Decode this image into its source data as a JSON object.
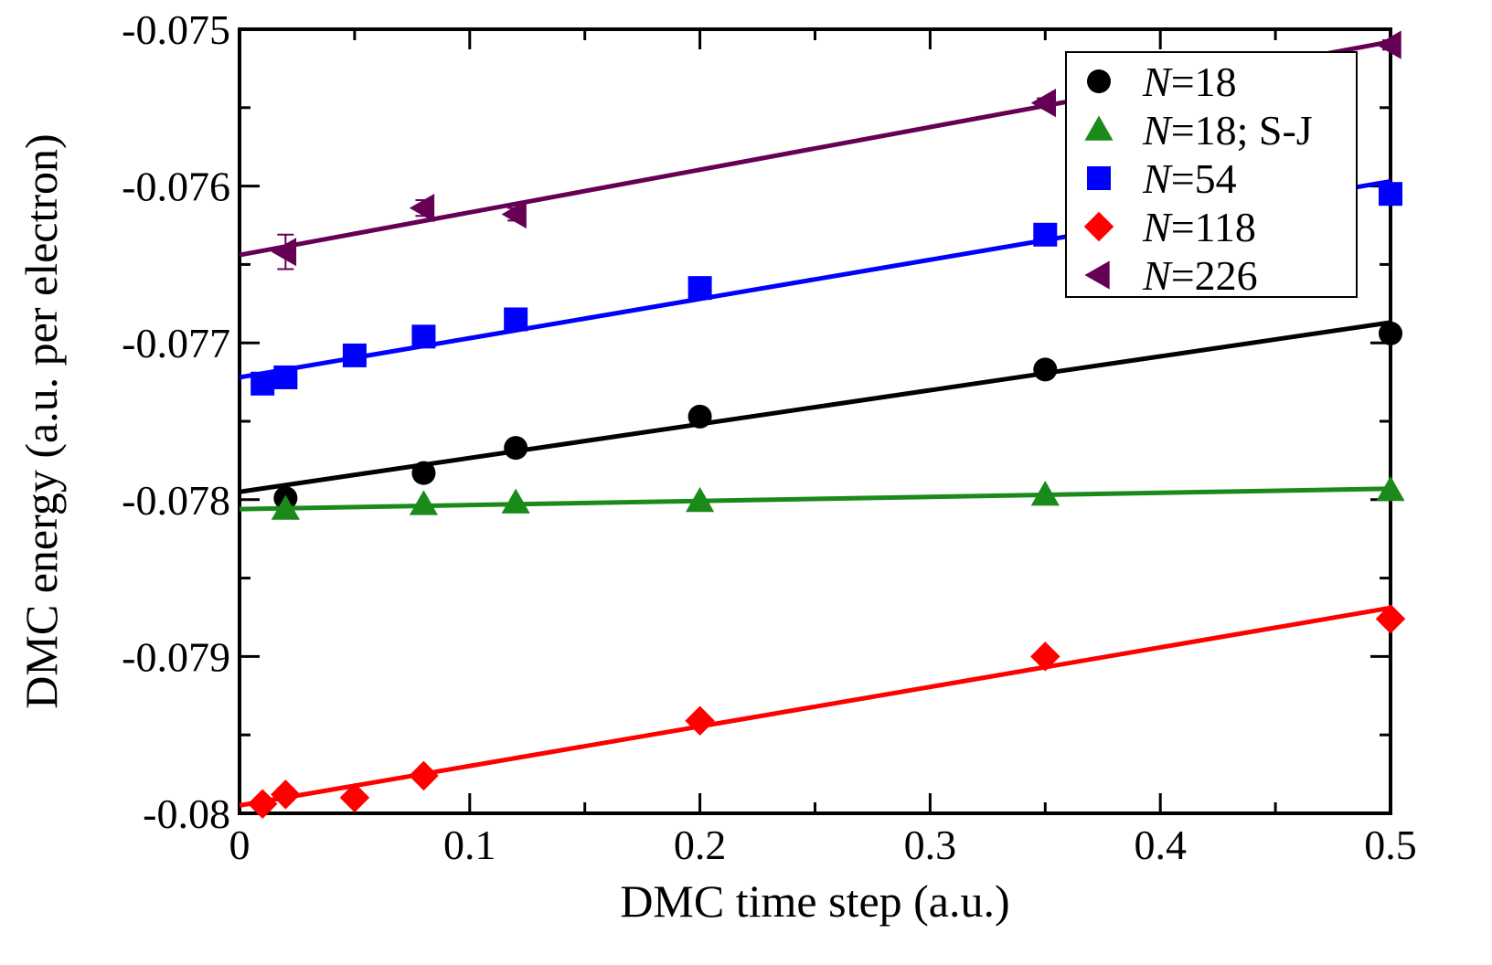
{
  "chart_data": {
    "type": "scatter",
    "title": "",
    "xlabel": "DMC time step (a.u.)",
    "ylabel": "DMC energy (a.u. per electron)",
    "xlim": [
      0,
      0.5
    ],
    "ylim": [
      -0.08,
      -0.075
    ],
    "x_ticks": [
      0,
      0.1,
      0.2,
      0.3,
      0.4,
      0.5
    ],
    "x_tick_labels": [
      "0",
      "0.1",
      "0.2",
      "0.3",
      "0.4",
      "0.5"
    ],
    "y_ticks": [
      -0.08,
      -0.079,
      -0.078,
      -0.077,
      -0.076,
      -0.075
    ],
    "y_tick_labels": [
      "-0.08",
      "-0.079",
      "-0.078",
      "-0.077",
      "-0.076",
      "-0.075"
    ],
    "grid": false,
    "legend_position": "top-right",
    "series": [
      {
        "name": "N=18",
        "legend_italic": "N",
        "legend_rest": "=18",
        "marker": "circle",
        "color": "#000000",
        "x": [
          0.02,
          0.08,
          0.12,
          0.2,
          0.35,
          0.5
        ],
        "y": [
          -0.07799,
          -0.07783,
          -0.07767,
          -0.07747,
          -0.07717,
          -0.07694
        ],
        "fit": [
          [
            0,
            -0.07795
          ],
          [
            0.5,
            -0.07687
          ]
        ]
      },
      {
        "name": "N=18; S-J",
        "legend_italic": "N",
        "legend_rest": "=18; S-J",
        "marker": "triangle-up",
        "color": "#1a8a1a",
        "x": [
          0.02,
          0.08,
          0.12,
          0.2,
          0.35,
          0.5
        ],
        "y": [
          -0.07806,
          -0.07803,
          -0.07802,
          -0.07801,
          -0.07797,
          -0.07794
        ],
        "fit": [
          [
            0,
            -0.07806
          ],
          [
            0.5,
            -0.07793
          ]
        ]
      },
      {
        "name": "N=54",
        "legend_italic": "N",
        "legend_rest": "=54",
        "marker": "square",
        "color": "#0000ff",
        "x": [
          0.01,
          0.02,
          0.05,
          0.08,
          0.12,
          0.2,
          0.35,
          0.5
        ],
        "y": [
          -0.07726,
          -0.07722,
          -0.07708,
          -0.07696,
          -0.07685,
          -0.07665,
          -0.07631,
          -0.07605
        ],
        "fit": [
          [
            0,
            -0.07722
          ],
          [
            0.5,
            -0.07597
          ]
        ]
      },
      {
        "name": "N=118",
        "legend_italic": "N",
        "legend_rest": "=118",
        "marker": "diamond",
        "color": "#ff0000",
        "x": [
          0.01,
          0.02,
          0.05,
          0.08,
          0.2,
          0.35,
          0.5
        ],
        "y": [
          -0.07994,
          -0.07988,
          -0.0799,
          -0.07976,
          -0.07941,
          -0.079,
          -0.07876
        ],
        "error": [
          4e-05,
          4e-05,
          3e-05,
          3e-05,
          3e-05,
          2e-05,
          2e-05
        ],
        "fit": [
          [
            0,
            -0.07995
          ],
          [
            0.5,
            -0.07869
          ]
        ]
      },
      {
        "name": "N=226",
        "legend_italic": "N",
        "legend_rest": "=226",
        "marker": "triangle-left",
        "color": "#660055",
        "x": [
          0.02,
          0.08,
          0.12,
          0.35,
          0.5
        ],
        "y": [
          -0.07642,
          -0.07614,
          -0.07618,
          -0.07547,
          -0.0751
        ],
        "error": [
          0.00011,
          5e-05,
          4e-05,
          3e-05,
          3e-05
        ],
        "fit": [
          [
            0,
            -0.07644
          ],
          [
            0.5,
            -0.07508
          ]
        ]
      }
    ]
  }
}
